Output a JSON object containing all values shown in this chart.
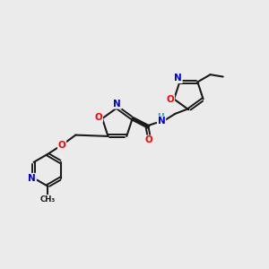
{
  "background_color": "#ebebeb",
  "bond_color": "#1a1a1a",
  "atom_colors": {
    "N": "#0000dd",
    "O": "#ff0000",
    "C": "#1a1a1a",
    "H": "#20a0a0"
  },
  "figsize": [
    3.0,
    3.0
  ],
  "dpi": 100
}
